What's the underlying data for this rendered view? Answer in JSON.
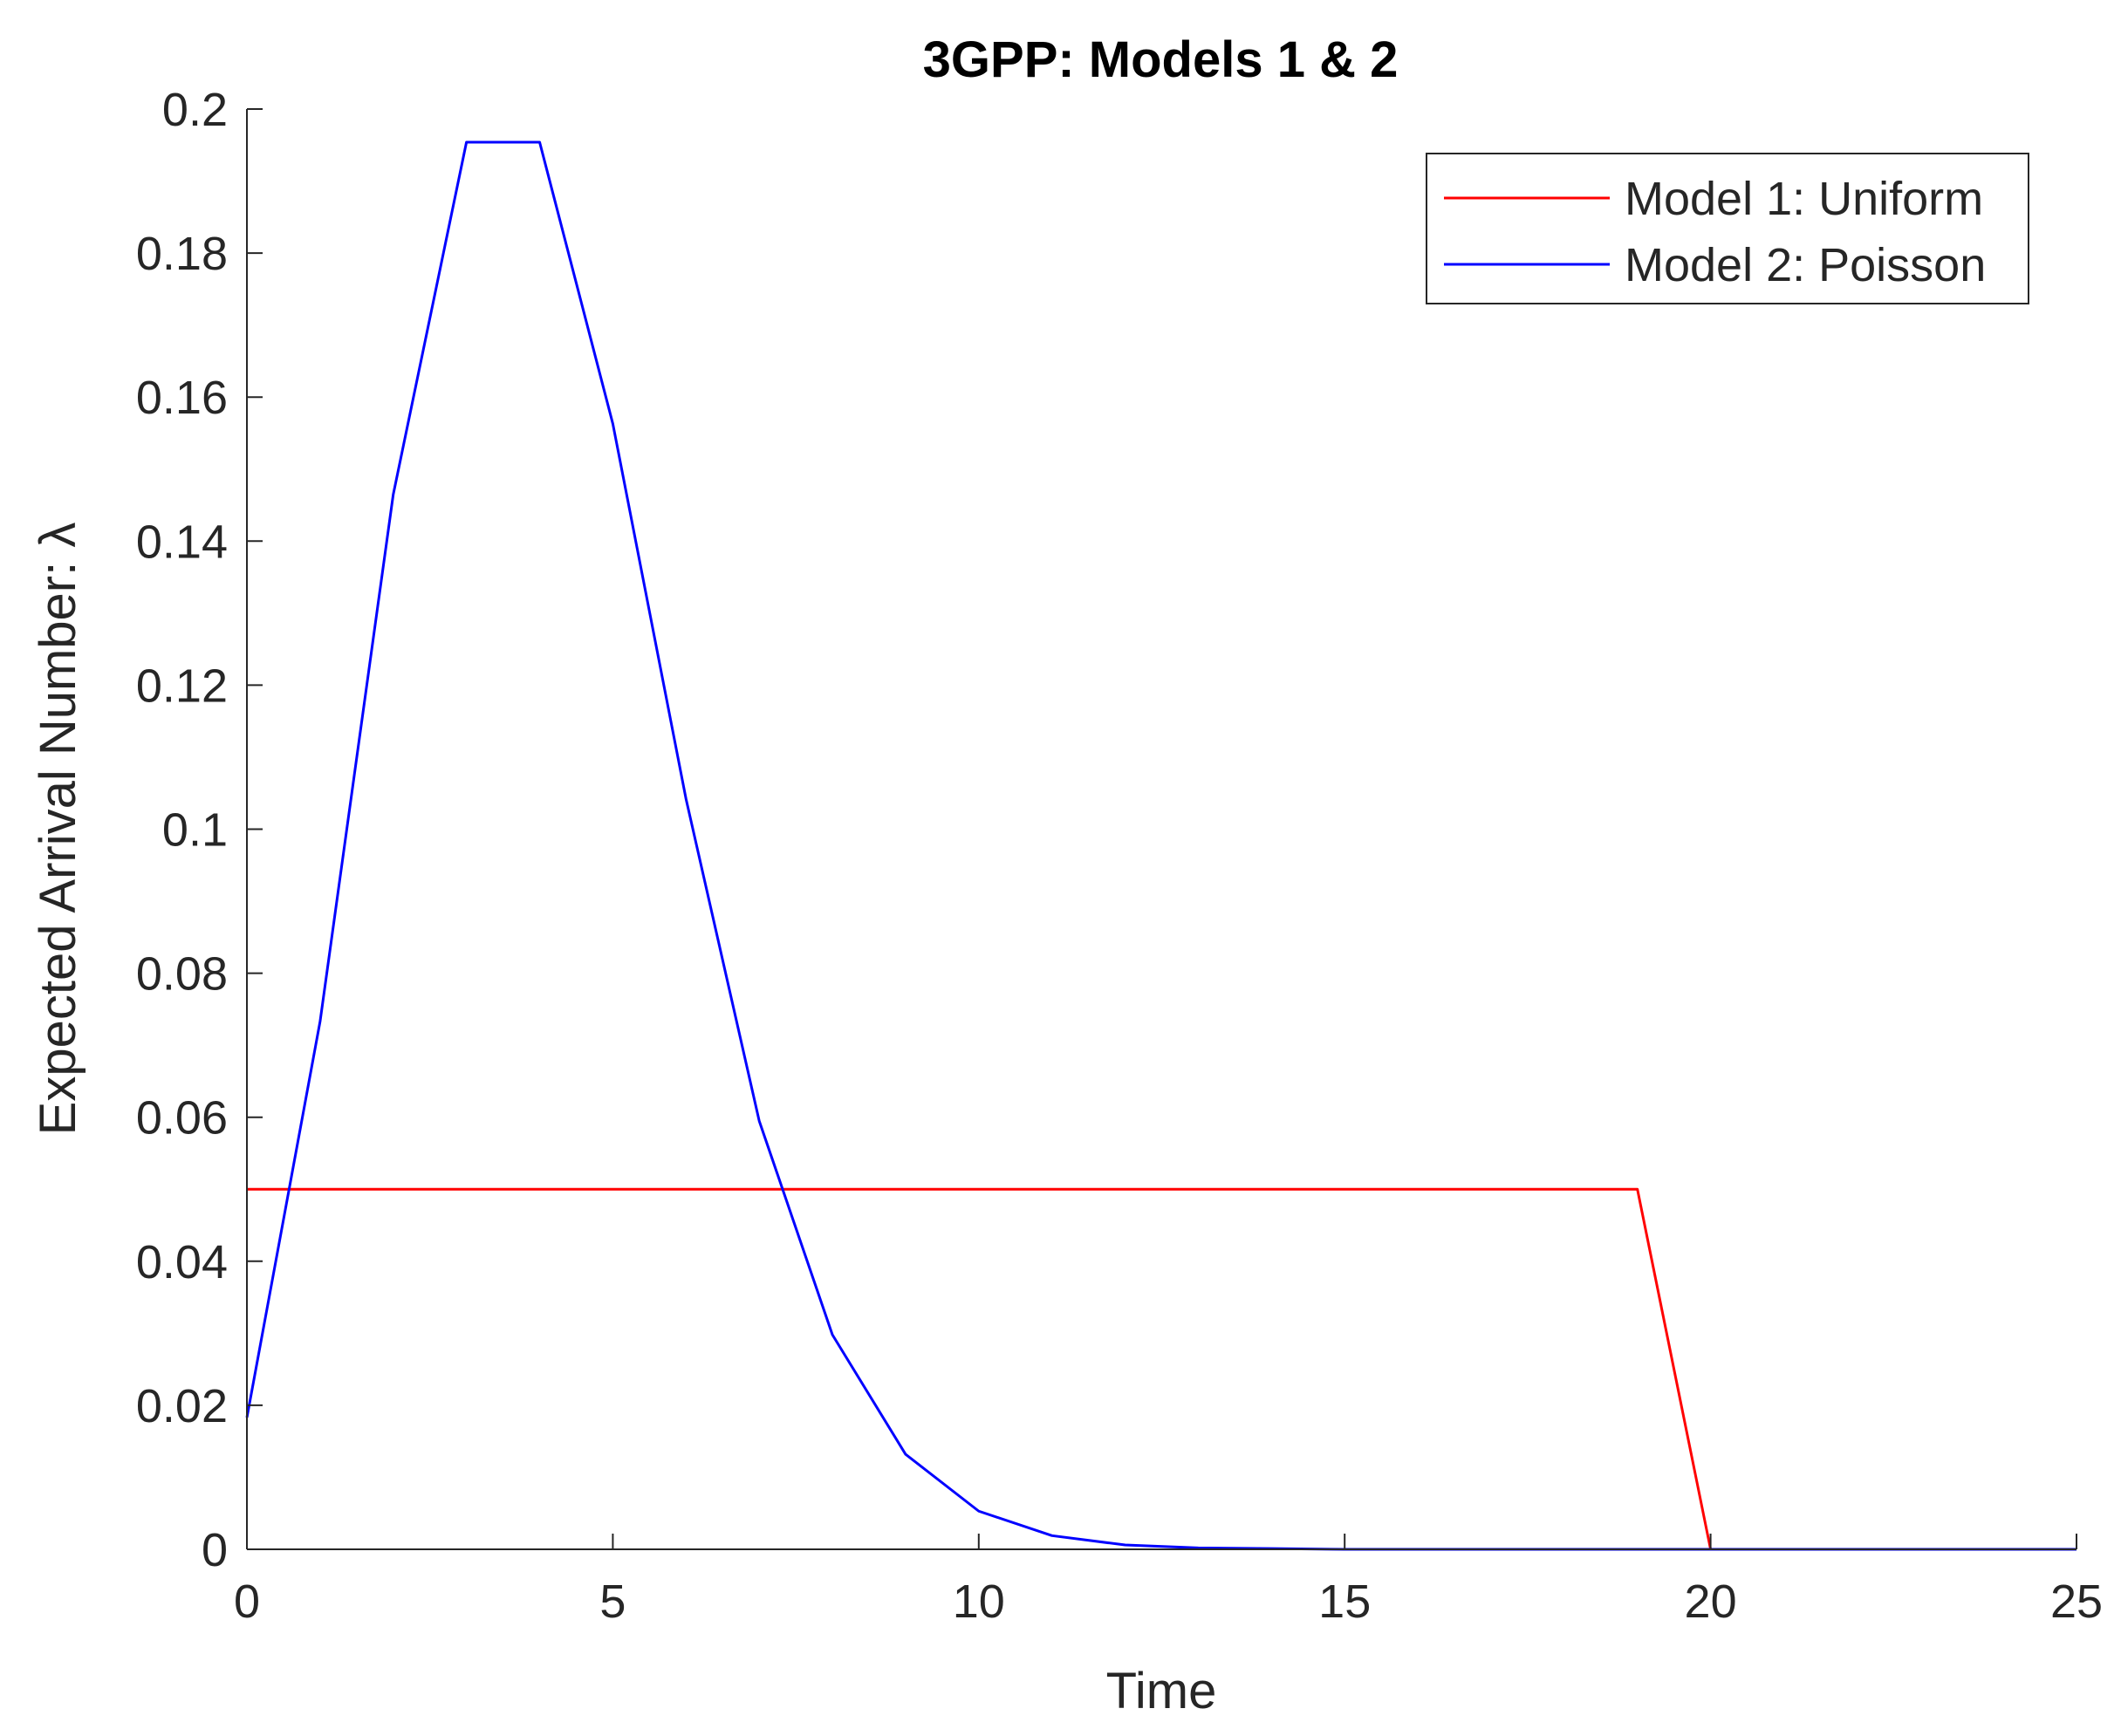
{
  "chart_data": {
    "type": "line",
    "title": "3GPP: Models 1 & 2",
    "xlabel": "Time",
    "ylabel": "Expected Arrival Number: λ",
    "xlim": [
      0,
      25
    ],
    "ylim": [
      0,
      0.2
    ],
    "x_ticks": [
      "0",
      "5",
      "10",
      "15",
      "20",
      "25"
    ],
    "y_ticks": [
      "0",
      "0.02",
      "0.04",
      "0.06",
      "0.08",
      "0.1",
      "0.12",
      "0.14",
      "0.16",
      "0.18",
      "0.2"
    ],
    "grid": false,
    "legend_position": "top-right",
    "series": [
      {
        "name": "Model 1: Uniform",
        "color": "#ff0000",
        "points": [
          [
            0,
            0.05
          ],
          [
            19,
            0.05
          ],
          [
            20,
            0
          ],
          [
            25,
            0
          ]
        ]
      },
      {
        "name": "Model 2: Poisson",
        "color": "#0000ff",
        "points": [
          [
            0,
            0.0183
          ],
          [
            1,
            0.0733
          ],
          [
            2,
            0.1465
          ],
          [
            3,
            0.1954
          ],
          [
            4,
            0.1954
          ],
          [
            5,
            0.1563
          ],
          [
            6,
            0.1042
          ],
          [
            7,
            0.0595
          ],
          [
            8,
            0.0298
          ],
          [
            9,
            0.0132
          ],
          [
            10,
            0.0053
          ],
          [
            11,
            0.0019
          ],
          [
            12,
            0.0006
          ],
          [
            13,
            0.0002
          ],
          [
            14,
            0.0001
          ],
          [
            15,
            0
          ],
          [
            16,
            0
          ],
          [
            17,
            0
          ],
          [
            18,
            0
          ],
          [
            19,
            0
          ],
          [
            20,
            0
          ],
          [
            21,
            0
          ],
          [
            22,
            0
          ],
          [
            23,
            0
          ],
          [
            24,
            0
          ],
          [
            25,
            0
          ]
        ]
      }
    ]
  }
}
